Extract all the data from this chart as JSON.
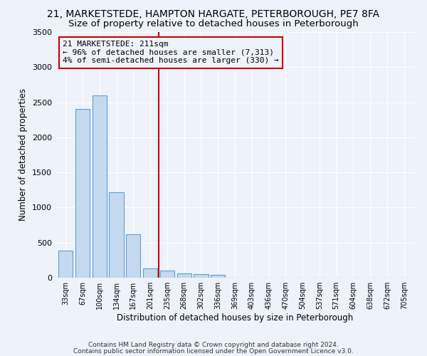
{
  "title1": "21, MARKETSTEDE, HAMPTON HARGATE, PETERBOROUGH, PE7 8FA",
  "title2": "Size of property relative to detached houses in Peterborough",
  "xlabel": "Distribution of detached houses by size in Peterborough",
  "ylabel": "Number of detached properties",
  "categories": [
    "33sqm",
    "67sqm",
    "100sqm",
    "134sqm",
    "167sqm",
    "201sqm",
    "235sqm",
    "268sqm",
    "302sqm",
    "336sqm",
    "369sqm",
    "403sqm",
    "436sqm",
    "470sqm",
    "504sqm",
    "537sqm",
    "571sqm",
    "604sqm",
    "638sqm",
    "672sqm",
    "705sqm"
  ],
  "values": [
    390,
    2400,
    2600,
    1220,
    620,
    130,
    100,
    65,
    55,
    40,
    0,
    0,
    0,
    0,
    0,
    0,
    0,
    0,
    0,
    0,
    0
  ],
  "bar_color": "#c5d9ee",
  "bar_edge_color": "#5a9fd4",
  "vline_x": 5.5,
  "vline_color": "#cc0000",
  "annotation_text": "21 MARKETSTEDE: 211sqm\n← 96% of detached houses are smaller (7,313)\n4% of semi-detached houses are larger (330) →",
  "annotation_box_color": "#cc0000",
  "ylim": [
    0,
    3500
  ],
  "yticks": [
    0,
    500,
    1000,
    1500,
    2000,
    2500,
    3000,
    3500
  ],
  "footer1": "Contains HM Land Registry data © Crown copyright and database right 2024.",
  "footer2": "Contains public sector information licensed under the Open Government Licence v3.0.",
  "bg_color": "#eef2fb",
  "grid_color": "#ffffff",
  "title1_fontsize": 10,
  "title2_fontsize": 9.5,
  "xlabel_fontsize": 8.5,
  "ylabel_fontsize": 8.5
}
